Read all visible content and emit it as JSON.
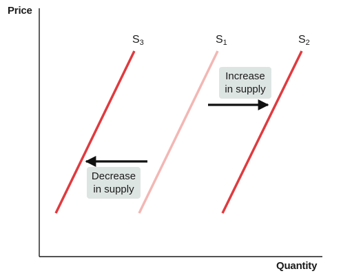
{
  "axes": {
    "y_label": "Price",
    "x_label": "Quantity"
  },
  "curves": [
    {
      "id": "s3",
      "symbol": "S",
      "subscript": "3",
      "color": "#e03a3e"
    },
    {
      "id": "s1",
      "symbol": "S",
      "subscript": "1",
      "color": "#f3b7b4"
    },
    {
      "id": "s2",
      "symbol": "S",
      "subscript": "2",
      "color": "#e03a3e"
    }
  ],
  "callouts": {
    "increase": {
      "line1": "Increase",
      "line2": "in supply",
      "direction": "right"
    },
    "decrease": {
      "line1": "Decrease",
      "line2": "in supply",
      "direction": "left"
    }
  },
  "colors": {
    "axis": "#1a1a1a",
    "arrow": "#111111",
    "callout_bg": "#dde5e3"
  }
}
